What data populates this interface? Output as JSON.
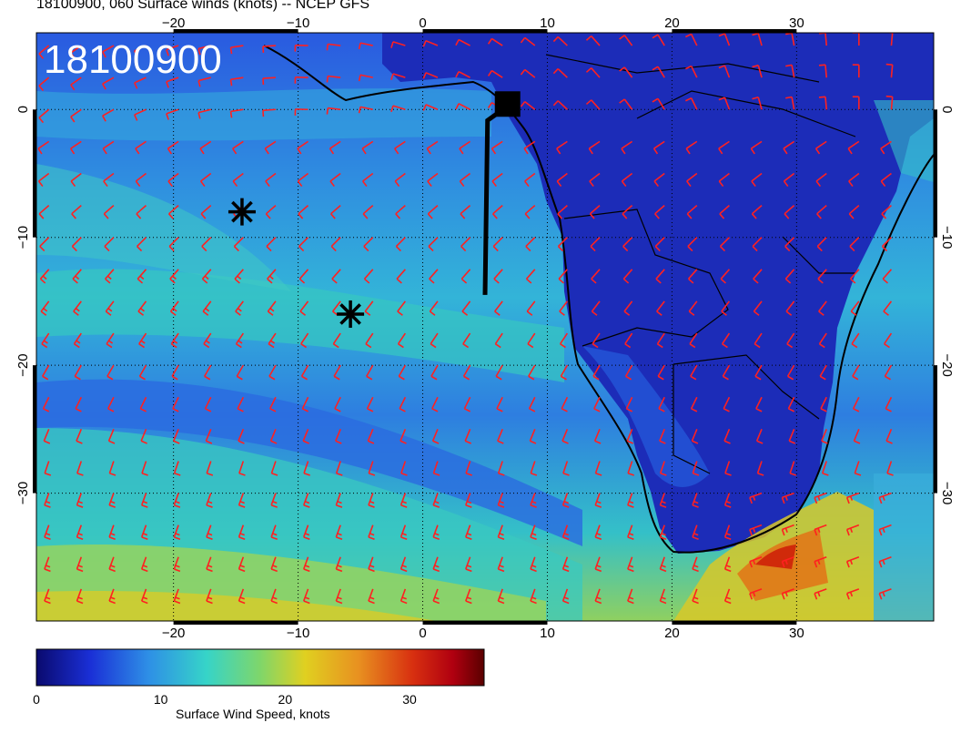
{
  "header": {
    "title": "18100900, 060 Surface winds (knots) -- NCEP GFS",
    "stamp": "18100900"
  },
  "map": {
    "lon_range": [
      -31,
      41
    ],
    "lat_range": [
      6,
      -40
    ],
    "lon_ticks": [
      "-20",
      "-10",
      "0",
      "10",
      "20",
      "30"
    ],
    "lat_ticks": [
      "0",
      "-10",
      "-20",
      "-30"
    ],
    "wind_barb_color": "#ff2020",
    "markers": [
      {
        "type": "asterisk",
        "lon": -14.5,
        "lat": -8
      },
      {
        "type": "asterisk",
        "lon": -5.8,
        "lat": -16
      }
    ],
    "track": {
      "type": "line",
      "from_lon": 5,
      "from_lat": -14.5,
      "to_lon": 5.2,
      "to_lat": 0
    }
  },
  "colorbar": {
    "label": "Surface Wind Speed, knots",
    "ticks": [
      "0",
      "10",
      "20",
      "30"
    ],
    "range": [
      0,
      36
    ],
    "colors": [
      "#0a0a6e",
      "#1a2fd6",
      "#2e8fe6",
      "#36d4c8",
      "#7fd66a",
      "#e0d020",
      "#e89020",
      "#d83010",
      "#b00010",
      "#5a0000"
    ]
  }
}
